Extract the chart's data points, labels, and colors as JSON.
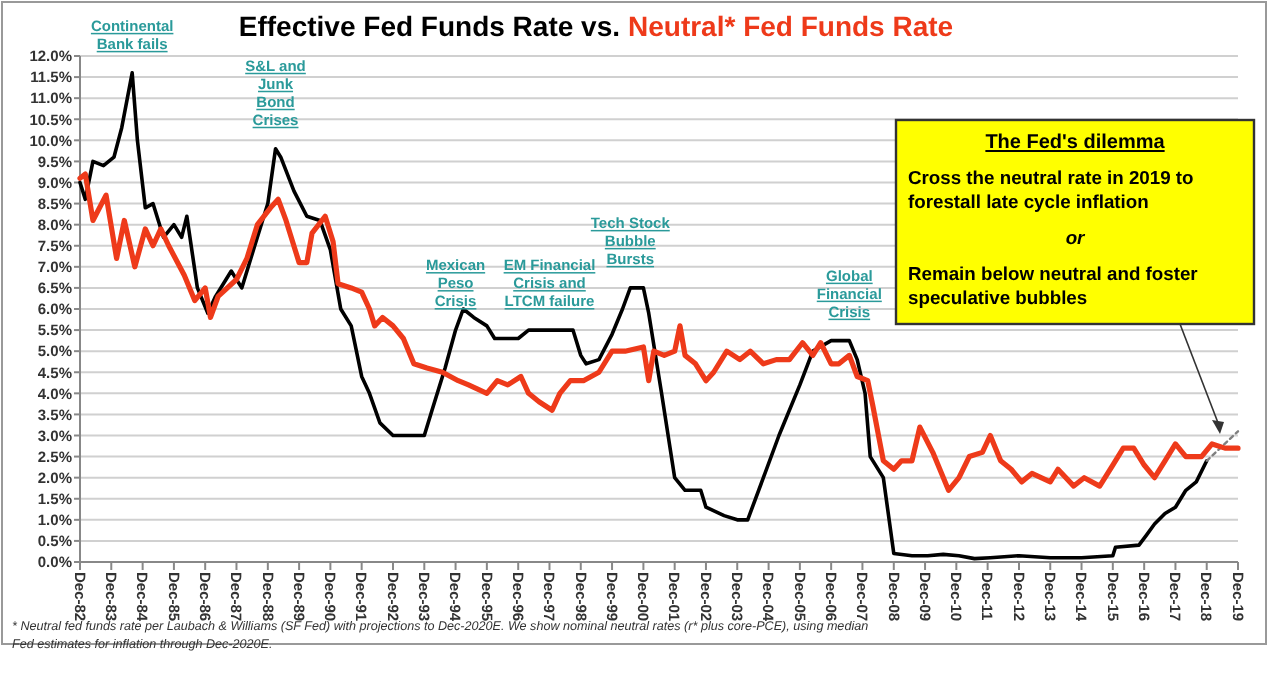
{
  "chart_data": {
    "type": "line",
    "title": "Effective Fed Funds Rate vs.",
    "subtitle": "Neutral* Fed Funds Rate",
    "line_style": "solid",
    "grid": "y",
    "marker": "none",
    "xlim": [
      "1982-12",
      "2019-12"
    ],
    "xticks": [
      {
        "value": "1982-12",
        "label": "Dec-82"
      },
      {
        "value": "1983-12",
        "label": "Dec-83"
      },
      {
        "value": "1984-12",
        "label": "Dec-84"
      },
      {
        "value": "1985-12",
        "label": "Dec-85"
      },
      {
        "value": "1986-12",
        "label": "Dec-86"
      },
      {
        "value": "1987-12",
        "label": "Dec-87"
      },
      {
        "value": "1988-12",
        "label": "Dec-88"
      },
      {
        "value": "1989-12",
        "label": "Dec-89"
      },
      {
        "value": "1990-12",
        "label": "Dec-90"
      },
      {
        "value": "1991-12",
        "label": "Dec-91"
      },
      {
        "value": "1992-12",
        "label": "Dec-92"
      },
      {
        "value": "1993-12",
        "label": "Dec-93"
      },
      {
        "value": "1994-12",
        "label": "Dec-94"
      },
      {
        "value": "1995-12",
        "label": "Dec-95"
      },
      {
        "value": "1996-12",
        "label": "Dec-96"
      },
      {
        "value": "1997-12",
        "label": "Dec-97"
      },
      {
        "value": "1998-12",
        "label": "Dec-98"
      },
      {
        "value": "1999-12",
        "label": "Dec-99"
      },
      {
        "value": "2000-12",
        "label": "Dec-00"
      },
      {
        "value": "2001-12",
        "label": "Dec-01"
      },
      {
        "value": "2002-12",
        "label": "Dec-02"
      },
      {
        "value": "2003-12",
        "label": "Dec-03"
      },
      {
        "value": "2004-12",
        "label": "Dec-04"
      },
      {
        "value": "2005-12",
        "label": "Dec-05"
      },
      {
        "value": "2006-12",
        "label": "Dec-06"
      },
      {
        "value": "2007-12",
        "label": "Dec-07"
      },
      {
        "value": "2008-12",
        "label": "Dec-08"
      },
      {
        "value": "2009-12",
        "label": "Dec-09"
      },
      {
        "value": "2010-12",
        "label": "Dec-10"
      },
      {
        "value": "2011-12",
        "label": "Dec-11"
      },
      {
        "value": "2012-12",
        "label": "Dec-12"
      },
      {
        "value": "2013-12",
        "label": "Dec-13"
      },
      {
        "value": "2014-12",
        "label": "Dec-14"
      },
      {
        "value": "2015-12",
        "label": "Dec-15"
      },
      {
        "value": "2016-12",
        "label": "Dec-16"
      },
      {
        "value": "2017-12",
        "label": "Dec-17"
      },
      {
        "value": "2018-12",
        "label": "Dec-18"
      },
      {
        "value": "2019-12",
        "label": "Dec-19"
      }
    ],
    "ylim": [
      0,
      12
    ],
    "yticks": [
      {
        "value": 0,
        "label": "0.0%"
      },
      {
        "value": 0.5,
        "label": "0.5%"
      },
      {
        "value": 1,
        "label": "1.0%"
      },
      {
        "value": 1.5,
        "label": "1.5%"
      },
      {
        "value": 2,
        "label": "2.0%"
      },
      {
        "value": 2.5,
        "label": "2.5%"
      },
      {
        "value": 3,
        "label": "3.0%"
      },
      {
        "value": 3.5,
        "label": "3.5%"
      },
      {
        "value": 4,
        "label": "4.0%"
      },
      {
        "value": 4.5,
        "label": "4.5%"
      },
      {
        "value": 5,
        "label": "5.0%"
      },
      {
        "value": 5.5,
        "label": "5.5%"
      },
      {
        "value": 6,
        "label": "6.0%"
      },
      {
        "value": 6.5,
        "label": "6.5%"
      },
      {
        "value": 7,
        "label": "7.0%"
      },
      {
        "value": 7.5,
        "label": "7.5%"
      },
      {
        "value": 8,
        "label": "8.0%"
      },
      {
        "value": 8.5,
        "label": "8.5%"
      },
      {
        "value": 9,
        "label": "9.0%"
      },
      {
        "value": 9.5,
        "label": "9.5%"
      },
      {
        "value": 10,
        "label": "10.0%"
      },
      {
        "value": 10.5,
        "label": "10.5%"
      },
      {
        "value": 11,
        "label": "11.0%"
      },
      {
        "value": 11.5,
        "label": "11.5%"
      },
      {
        "value": 12,
        "label": "12.0%"
      }
    ],
    "series": [
      {
        "color": "#000000",
        "x": [
          "1982-12",
          "1983-02",
          "1983-05",
          "1983-09",
          "1984-01",
          "1984-04",
          "1984-08",
          "1984-10",
          "1985-01",
          "1985-04",
          "1985-08",
          "1985-12",
          "1986-03",
          "1986-05",
          "1986-09",
          "1987-01",
          "1987-04",
          "1987-08",
          "1987-10",
          "1988-02",
          "1988-07",
          "1988-12",
          "1989-03",
          "1989-05",
          "1989-10",
          "1990-03",
          "1990-08",
          "1990-12",
          "1991-04",
          "1991-08",
          "1991-12",
          "1992-03",
          "1992-07",
          "1992-12",
          "1993-07",
          "1993-12",
          "1994-03",
          "1994-08",
          "1994-12",
          "1995-03",
          "1995-07",
          "1995-12",
          "1996-03",
          "1996-08",
          "1996-12",
          "1997-04",
          "1997-12",
          "1998-09",
          "1998-12",
          "1999-02",
          "1999-07",
          "1999-12",
          "2000-04",
          "2000-07",
          "2000-12",
          "2001-02",
          "2001-07",
          "2001-12",
          "2002-04",
          "2002-10",
          "2002-12",
          "2003-07",
          "2003-12",
          "2004-04",
          "2004-10",
          "2005-04",
          "2005-12",
          "2006-05",
          "2006-12",
          "2007-07",
          "2007-10",
          "2008-01",
          "2008-03",
          "2008-08",
          "2008-12",
          "2009-07",
          "2010-01",
          "2010-07",
          "2011-01",
          "2011-07",
          "2012-01",
          "2012-12",
          "2013-12",
          "2014-12",
          "2015-12",
          "2016-01",
          "2016-10",
          "2017-01",
          "2017-04",
          "2017-08",
          "2017-12",
          "2018-04",
          "2018-08",
          "2018-12"
        ],
        "values": [
          9.0,
          8.6,
          9.5,
          9.4,
          9.6,
          10.3,
          11.6,
          10.0,
          8.4,
          8.5,
          7.7,
          8.0,
          7.7,
          8.2,
          6.5,
          5.9,
          6.3,
          6.7,
          6.9,
          6.5,
          7.5,
          8.5,
          9.8,
          9.6,
          8.8,
          8.2,
          8.1,
          7.4,
          6.0,
          5.6,
          4.4,
          4.0,
          3.3,
          3.0,
          3.0,
          3.0,
          3.6,
          4.6,
          5.5,
          6.0,
          5.8,
          5.6,
          5.3,
          5.3,
          5.3,
          5.5,
          5.5,
          5.5,
          4.9,
          4.7,
          4.8,
          5.4,
          6.0,
          6.5,
          6.5,
          5.9,
          4.0,
          2.0,
          1.7,
          1.7,
          1.3,
          1.1,
          1.0,
          1.0,
          2.0,
          3.0,
          4.2,
          5.0,
          5.25,
          5.25,
          4.8,
          4.0,
          2.5,
          2.0,
          0.2,
          0.15,
          0.15,
          0.18,
          0.15,
          0.08,
          0.1,
          0.15,
          0.1,
          0.1,
          0.15,
          0.35,
          0.4,
          0.65,
          0.9,
          1.15,
          1.3,
          1.7,
          1.9,
          2.4
        ]
      },
      {
        "color": "#808080",
        "line_style": "dotted",
        "x": [
          "2018-12",
          "2019-12"
        ],
        "values": [
          2.4,
          3.1
        ]
      },
      {
        "color": "#ee3a1a",
        "x": [
          "1982-12",
          "1983-02",
          "1983-05",
          "1983-10",
          "1984-02",
          "1984-05",
          "1984-09",
          "1985-01",
          "1985-04",
          "1985-07",
          "1985-10",
          "1986-04",
          "1986-08",
          "1986-12",
          "1987-02",
          "1987-05",
          "1987-12",
          "1988-04",
          "1988-08",
          "1989-01",
          "1989-04",
          "1989-07",
          "1989-12",
          "1990-03",
          "1990-05",
          "1990-10",
          "1991-01",
          "1991-03",
          "1991-08",
          "1991-12",
          "1992-03",
          "1992-05",
          "1992-08",
          "1992-12",
          "1993-04",
          "1993-08",
          "1994-01",
          "1994-07",
          "1995-01",
          "1995-05",
          "1995-12",
          "1996-04",
          "1996-08",
          "1997-01",
          "1997-04",
          "1997-08",
          "1998-01",
          "1998-04",
          "1998-08",
          "1999-01",
          "1999-07",
          "1999-12",
          "2000-05",
          "2000-12",
          "2001-02",
          "2001-04",
          "2001-08",
          "2001-12",
          "2002-02",
          "2002-04",
          "2002-08",
          "2002-12",
          "2003-03",
          "2003-08",
          "2004-01",
          "2004-05",
          "2004-10",
          "2005-03",
          "2005-08",
          "2006-01",
          "2006-05",
          "2006-08",
          "2006-12",
          "2007-03",
          "2007-07",
          "2007-10",
          "2008-02",
          "2008-04",
          "2008-08",
          "2008-12",
          "2009-03",
          "2009-07",
          "2009-10",
          "2010-03",
          "2010-09",
          "2011-01",
          "2011-05",
          "2011-10",
          "2012-01",
          "2012-05",
          "2012-09",
          "2013-01",
          "2013-05",
          "2013-12",
          "2014-03",
          "2014-09",
          "2015-01",
          "2015-07",
          "2015-12",
          "2016-04",
          "2016-08",
          "2016-12",
          "2017-04",
          "2017-08",
          "2017-12",
          "2018-04",
          "2018-10",
          "2019-02",
          "2019-07",
          "2019-12"
        ],
        "values": [
          9.1,
          9.2,
          8.1,
          8.7,
          7.2,
          8.1,
          7.0,
          7.9,
          7.5,
          7.9,
          7.5,
          6.8,
          6.2,
          6.5,
          5.8,
          6.3,
          6.7,
          7.2,
          8.0,
          8.4,
          8.6,
          8.1,
          7.1,
          7.1,
          7.8,
          8.2,
          7.6,
          6.6,
          6.5,
          6.4,
          6.0,
          5.6,
          5.8,
          5.6,
          5.3,
          4.7,
          4.6,
          4.5,
          4.3,
          4.2,
          4.0,
          4.3,
          4.2,
          4.4,
          4.0,
          3.8,
          3.6,
          4.0,
          4.3,
          4.3,
          4.5,
          5.0,
          5.0,
          5.1,
          4.3,
          5.0,
          4.9,
          5.0,
          5.6,
          4.9,
          4.7,
          4.3,
          4.5,
          5.0,
          4.8,
          5.0,
          4.7,
          4.8,
          4.8,
          5.2,
          4.9,
          5.2,
          4.7,
          4.7,
          4.9,
          4.4,
          4.3,
          3.7,
          2.4,
          2.2,
          2.4,
          2.4,
          3.2,
          2.6,
          1.7,
          2.0,
          2.5,
          2.6,
          3.0,
          2.4,
          2.2,
          1.9,
          2.1,
          1.9,
          2.2,
          1.8,
          2.0,
          1.8,
          2.3,
          2.7,
          2.7,
          2.3,
          2.0,
          2.4,
          2.8,
          2.5,
          2.5,
          2.8,
          2.7,
          2.7
        ]
      }
    ],
    "annotations": [
      {
        "text": "Continental\nBank fails",
        "x": "1984-08",
        "y": 11.6
      },
      {
        "text": "S&L and\nJunk\nBond\nCrises",
        "x": "1989-03",
        "y": 9.8
      },
      {
        "text": "Mexican\nPeso\nCrisis",
        "x": "1994-12",
        "y": 5.5
      },
      {
        "text": "EM Financial\nCrisis and\nLTCM failure",
        "x": "1997-12",
        "y": 5.5
      },
      {
        "text": "Tech Stock\nBubble\nBursts",
        "x": "2000-07",
        "y": 6.5
      },
      {
        "text": "Global\nFinancial\nCrisis",
        "x": "2007-07",
        "y": 5.25
      },
      "The Fed's dilemma",
      "Cross the neutral rate in 2019 to forestall late cycle inflation",
      "or",
      "Remain below neutral and foster speculative bubbles",
      "* Neutral fed funds rate per Laubach & Williams (SF Fed) with projections to Dec-2020E. We show nominal neutral rates (r* plus core-PCE), using median Fed estimates for inflation through Dec-2020E."
    ]
  }
}
